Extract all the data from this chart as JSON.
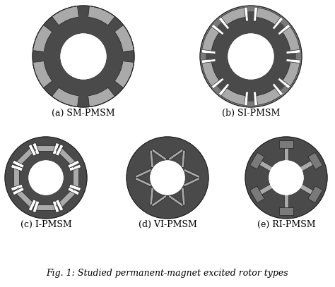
{
  "bg_color": "#ffffff",
  "dark_color": "#4a4a4a",
  "medium_color": "#7a7a7a",
  "light_color": "#aaaaaa",
  "white_color": "#ffffff",
  "outline_color": "#222222",
  "fig_title": "Fig. 1: Studied permanent-magnet excited rotor types",
  "labels": [
    "(a) SM-PMSM",
    "(b) SI-PMSM",
    "(c) I-PMSM",
    "(d) VI-PMSM",
    "(e) RI-PMSM"
  ],
  "label_fontsize": 9,
  "title_fontsize": 9,
  "n_poles_ab": 8,
  "n_poles_cde": 6
}
